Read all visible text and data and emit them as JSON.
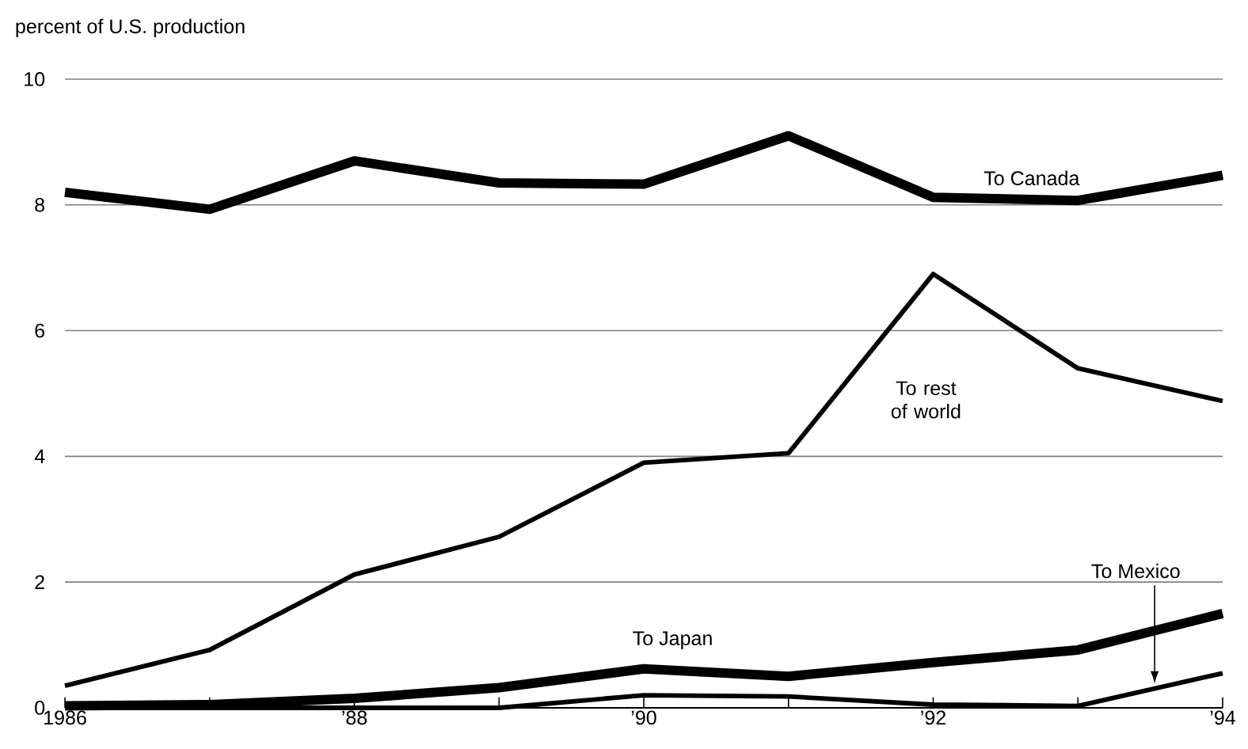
{
  "chart_data": {
    "type": "line",
    "ylabel": "percent of U.S. production",
    "x": [
      1986,
      1987,
      1988,
      1989,
      1990,
      1991,
      1992,
      1993,
      1994
    ],
    "xlim": [
      1986,
      1994
    ],
    "xticks": [
      {
        "value": 1986,
        "label": "1986"
      },
      {
        "value": 1987,
        "label": null
      },
      {
        "value": 1988,
        "label": "’88"
      },
      {
        "value": 1989,
        "label": null
      },
      {
        "value": 1990,
        "label": "’90"
      },
      {
        "value": 1991,
        "label": null
      },
      {
        "value": 1992,
        "label": "’92"
      },
      {
        "value": 1993,
        "label": null
      },
      {
        "value": 1994,
        "label": "’94"
      }
    ],
    "ylim": [
      0,
      10
    ],
    "yticks": [
      0,
      2,
      4,
      6,
      8,
      10
    ],
    "grid": "y",
    "marker": "none",
    "line_style": "solid",
    "series": [
      {
        "name": "To Canada",
        "color": "#000000",
        "values": [
          8.2,
          7.93,
          8.7,
          8.35,
          8.33,
          9.1,
          8.12,
          8.07,
          8.47
        ]
      },
      {
        "name": "To rest of world",
        "color": "#000000",
        "values": [
          0.35,
          0.92,
          2.12,
          2.72,
          3.9,
          4.05,
          6.9,
          5.4,
          4.88
        ]
      },
      {
        "name": "To Japan",
        "color": "#000000",
        "values": [
          0.03,
          0.05,
          0.15,
          0.32,
          0.62,
          0.5,
          0.72,
          0.92,
          1.5
        ]
      },
      {
        "name": "To Mexico",
        "color": "#000000",
        "values": [
          0,
          0,
          0,
          0,
          0.2,
          0.18,
          0.05,
          0.03,
          0.55
        ]
      }
    ]
  }
}
